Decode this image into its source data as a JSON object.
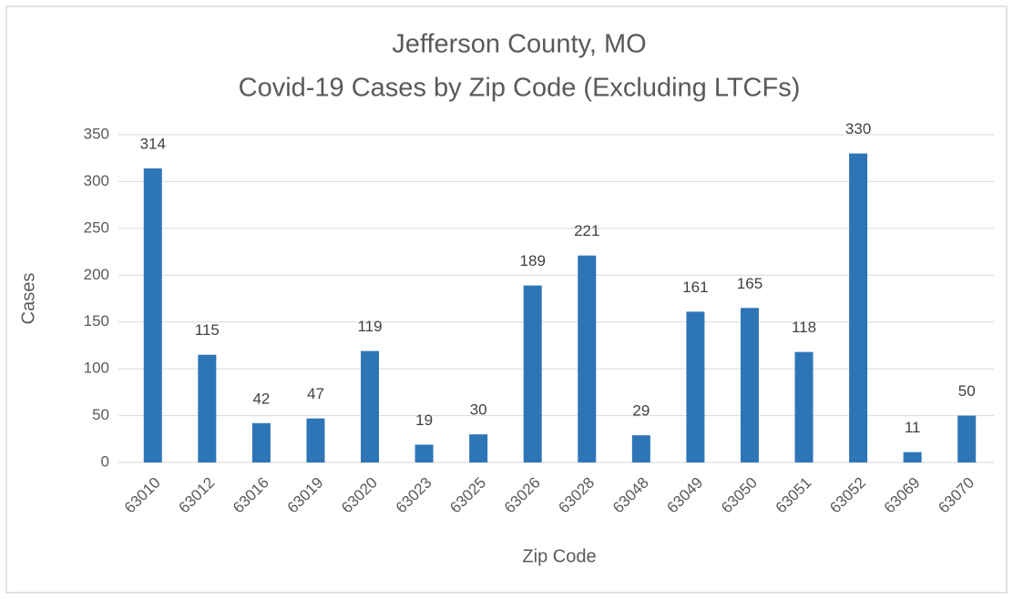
{
  "chart_data": {
    "type": "bar",
    "title": "Jefferson County, MO",
    "subtitle": "Covid-19 Cases by Zip Code (Excluding LTCFs)",
    "x_label": "Zip Code",
    "y_label": "Cases",
    "categories": [
      "63010",
      "63012",
      "63016",
      "63019",
      "63020",
      "63023",
      "63025",
      "63026",
      "63028",
      "63048",
      "63049",
      "63050",
      "63051",
      "63052",
      "63069",
      "63070"
    ],
    "values": [
      314,
      115,
      42,
      47,
      119,
      19,
      30,
      189,
      221,
      29,
      161,
      165,
      118,
      330,
      11,
      50
    ],
    "color": "#2e75b6",
    "ylim": [
      0,
      350
    ],
    "yticks": [
      0,
      50,
      100,
      150,
      200,
      250,
      300,
      350
    ],
    "grid": true
  }
}
